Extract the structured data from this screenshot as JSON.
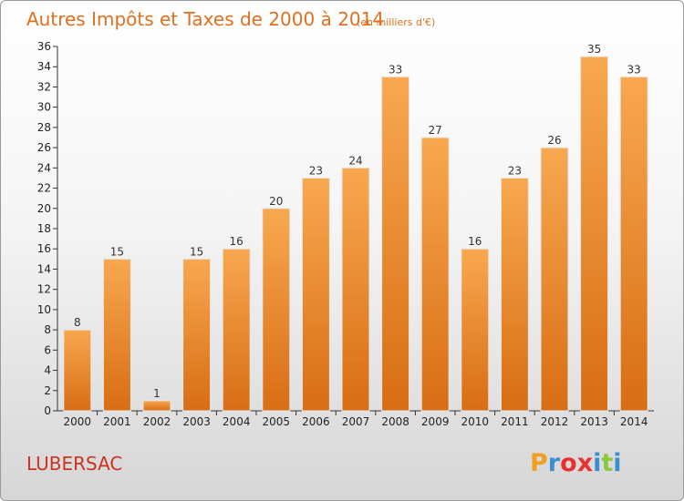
{
  "header": {
    "title": "Autres Impôts et Taxes de 2000 à 2014",
    "unit": "(en milliers d'€)"
  },
  "footer": {
    "commune": "LUBERSAC",
    "brand": "Proxiti",
    "brand_letters": [
      "P",
      "r",
      "o",
      "x",
      "i",
      "t",
      "i"
    ],
    "brand_colors": [
      "#f0a020",
      "#3a8fd0",
      "#e83030",
      "#e83030",
      "#3a8fd0",
      "#8dc63f",
      "#3a8fd0"
    ]
  },
  "colors": {
    "bar_top": "#f8a850",
    "bar_bottom": "#d86d14",
    "title": "#e0701e",
    "commune": "#cc3322"
  },
  "chart_data": {
    "type": "bar",
    "title": "Autres Impôts et Taxes de 2000 à 2014",
    "subtitle": "(en milliers d'€)",
    "categories": [
      "2000",
      "2001",
      "2002",
      "2003",
      "2004",
      "2005",
      "2006",
      "2007",
      "2008",
      "2009",
      "2010",
      "2011",
      "2012",
      "2013",
      "2014"
    ],
    "values": [
      8,
      15,
      1,
      15,
      16,
      20,
      23,
      24,
      33,
      27,
      16,
      23,
      26,
      35,
      33
    ],
    "ylim": [
      0,
      36
    ],
    "yticks": [
      0,
      2,
      4,
      6,
      8,
      10,
      12,
      14,
      16,
      18,
      20,
      22,
      24,
      26,
      28,
      30,
      32,
      34,
      36
    ],
    "grid": false,
    "legend": "none"
  }
}
